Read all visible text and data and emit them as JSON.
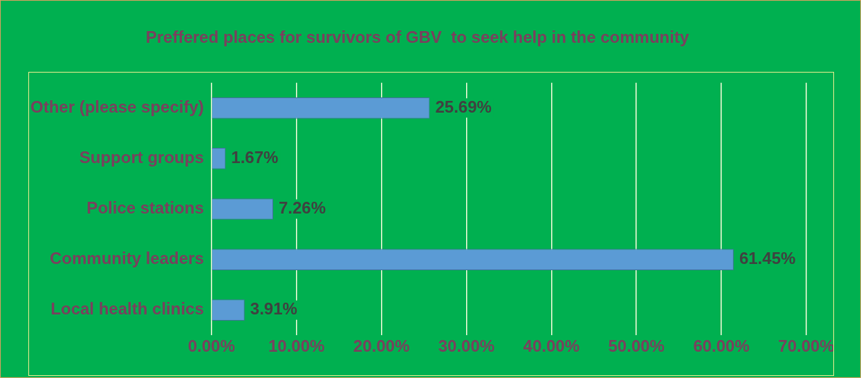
{
  "chart_data": {
    "type": "bar",
    "orientation": "horizontal",
    "title": "Preffered places for survivors of GBV  to seek help in the community",
    "categories": [
      "Other (please specify)",
      "Support groups",
      "Police stations",
      "Community leaders",
      "Local health clinics"
    ],
    "values": [
      25.69,
      1.67,
      7.26,
      61.45,
      3.91
    ],
    "value_labels": [
      "25.69%",
      "1.67%",
      "7.26%",
      "61.45%",
      "3.91%"
    ],
    "color": "#5b9bd5",
    "xlim": [
      0,
      70
    ],
    "xticks": [
      {
        "value": 0,
        "label": "0.00%"
      },
      {
        "value": 10,
        "label": "10.00%"
      },
      {
        "value": 20,
        "label": "20.00%"
      },
      {
        "value": 30,
        "label": "30.00%"
      },
      {
        "value": 40,
        "label": "40.00%"
      },
      {
        "value": 50,
        "label": "50.00%"
      },
      {
        "value": 60,
        "label": "60.00%"
      },
      {
        "value": 70,
        "label": "70.00%"
      }
    ],
    "grid": "x",
    "legend": false
  }
}
